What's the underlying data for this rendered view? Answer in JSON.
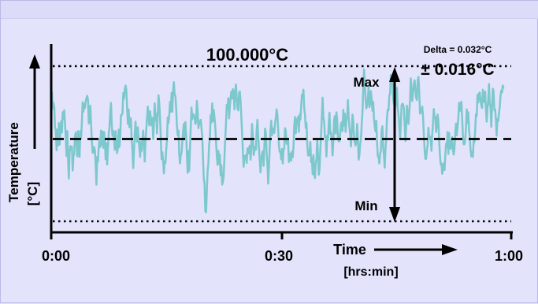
{
  "chart_data": {
    "type": "line",
    "title": "100.000°C",
    "ylabel_line1": "Temperature",
    "ylabel_line2": "[°C]",
    "xlabel_line1": "Time",
    "xlabel_line2": "[hrs:min]",
    "x_ticks": [
      "0:00",
      "0:30",
      "1:00"
    ],
    "xlim": [
      0,
      60
    ],
    "ylim": [
      -0.0175,
      0.0155
    ],
    "setpoint": 0,
    "max_line": 0.016,
    "min_line": -0.016,
    "max_label": "Max",
    "min_label": "Min",
    "delta_label": "Delta = 0.032°C",
    "tolerance_label": "± 0.016°C",
    "series": [
      {
        "color": "#7cc8cc",
        "x_start": 0,
        "x_step": 0.1,
        "values": [
          0.0076,
          0.0099,
          0.0065,
          0.0077,
          0.0068,
          0.0022,
          0.0021,
          -0.0024,
          0.002,
          -0.0014,
          0.0034,
          -0.0012,
          0.0016,
          0.0038,
          0.0014,
          0.0057,
          0.0043,
          0.0061,
          0.0032,
          0.0005,
          -0.0036,
          0.0017,
          -0.0044,
          -0.0084,
          -0.0028,
          -0.0015,
          -0.0018,
          -0.0016,
          -0.0067,
          -0.0036,
          -0.0032,
          0.0006,
          0.0014,
          -0.0005,
          -0.0037,
          0.0017,
          -0.0026,
          -0.0038,
          0.0017,
          0.0001,
          0.0034,
          0.0078,
          0.0058,
          0.0074,
          0.0066,
          0.0081,
          0.0087,
          0.0092,
          0.0084,
          0.0033,
          0.0037,
          0.0071,
          0.0034,
          -0.0002,
          -0.0029,
          -0.0029,
          -0.0017,
          -0.0024,
          -0.0054,
          -0.0097,
          -0.0038,
          -0.0048,
          -0.0017,
          0.0001,
          -0.0017,
          0.0018,
          -0.0012,
          0.0016,
          -0.0019,
          0.0015,
          -0.0005,
          -0.0043,
          -0.0009,
          -0.0054,
          -0.0021,
          0.001,
          0.0026,
          0.0056,
          0.0077,
          0.0029,
          0.0007,
          0.0017,
          0.0,
          -0.0023,
          0.0017,
          -0.0006,
          -0.003,
          -0.0019,
          0.002,
          -0.0017,
          0.0003,
          0.0051,
          0.0051,
          0.0055,
          0.0098,
          0.0086,
          0.0106,
          0.0114,
          0.0104,
          0.0067,
          0.0032,
          0.0063,
          0.0025,
          0.0045,
          0.0042,
          -0.0003,
          -0.0024,
          -0.0062,
          -0.0025,
          0.0011,
          0.0037,
          0.0003,
          -0.0006,
          0.0025,
          0.0,
          -0.0018,
          -0.0038,
          -0.0006,
          -0.0025,
          -0.0001,
          0.0018,
          -0.0011,
          -0.0048,
          -0.0003,
          0.0019,
          0.0046,
          0.0069,
          0.0045,
          0.0029,
          0.0059,
          0.0042,
          0.0029,
          0.0045,
          0.0,
          0.0031,
          0.0076,
          0.004,
          0.0054,
          0.0012,
          0.0056,
          0.0093,
          0.0074,
          0.0043,
          -0.0002,
          -0.0043,
          -0.0028,
          -0.0047,
          -0.0073,
          -0.0048,
          -0.0051,
          -0.0023,
          -0.0002,
          0.0046,
          0.0034,
          0.0052,
          0.0079,
          0.0058,
          0.0098,
          0.0058,
          0.0104,
          0.0121,
          0.0094,
          0.0091,
          0.0065,
          0.0029,
          0.0008,
          0.0018,
          -0.0032,
          -0.0052,
          -0.0034,
          -0.0029,
          -0.0006,
          0.0015,
          0.0032,
          0.0,
          0.0036,
          0.0009,
          -0.0033,
          -0.0072,
          -0.0025,
          -0.0068,
          -0.0021,
          0.0026,
          0.0067,
          0.0042,
          0.0053,
          0.0052,
          0.0046,
          0.0032,
          0.0037,
          0.0081,
          0.006,
          0.0023,
          0.0033,
          0.0036,
          0.0041,
          0.0024,
          0.0006,
          -0.004,
          -0.0084,
          -0.0095,
          -0.0153,
          -0.0156,
          -0.0109,
          -0.0068,
          -0.0052,
          -0.0011,
          0.0002,
          0.0051,
          0.0035,
          0.0076,
          0.0038,
          0.0062,
          0.0046,
          0.0026,
          -0.0006,
          -0.0036,
          -0.0055,
          -0.0025,
          -0.0053,
          -0.0033,
          -0.0077,
          -0.0056,
          -0.0097,
          -0.0091,
          -0.0078,
          -0.0038,
          0.0,
          0.0033,
          0.0073,
          0.0063,
          0.0087,
          0.0044,
          0.0069,
          0.0088,
          0.0101,
          0.0086,
          0.0106,
          0.0099,
          0.0063,
          0.0102,
          0.0116,
          0.0088,
          0.0065,
          0.0061,
          0.0098,
          0.0101,
          0.0082,
          0.0046,
          0.0013,
          -0.0026,
          -0.0059,
          -0.0036,
          -0.0038,
          -0.0034,
          -0.0051,
          -0.002,
          -0.0031,
          -0.0019,
          -0.0014,
          -0.0044,
          -0.0013,
          0.0032,
          0.0004,
          -0.0034,
          -0.0026,
          -0.0017,
          -0.0022,
          0.002,
          0.0041,
          0.0004,
          -0.002,
          -0.0045,
          -0.0071,
          -0.0045,
          -0.0031,
          -0.0026,
          -0.0057,
          -0.0015,
          0.0022,
          0.0012,
          -0.003,
          -0.0053,
          -0.0095,
          -0.0059,
          -0.0019,
          0.0018,
          0.0039,
          0.0008,
          0.0023,
          0.0022,
          0.0013,
          0.0034,
          0.0046,
          0.0063,
          0.0053,
          0.0022,
          -0.0012,
          -0.0027,
          -0.0027,
          -0.0043,
          -0.0021,
          -0.0052,
          -0.0025,
          -0.0019,
          0.0023,
          0.0017,
          -0.0009,
          -0.0011,
          -0.0003,
          -0.0049,
          -0.0033,
          -0.0031,
          -0.0046,
          -0.0027,
          -0.0039,
          -0.0018,
          0.0028,
          0.0047,
          0.0012,
          0.0038,
          0.0043,
          0.0047,
          0.0015,
          0.0052,
          0.0041,
          0.0069,
          0.0094,
          0.0091,
          0.0105,
          0.0066,
          0.0052,
          0.0023,
          0.0034,
          -0.0012,
          -0.0035,
          -0.0035,
          -0.0032,
          -0.0006,
          -0.0049,
          -0.004,
          -0.0075,
          -0.0034,
          -0.0071,
          -0.0083,
          -0.0053,
          -0.0042,
          0.0,
          -0.0033,
          -0.0076,
          -0.0064,
          -0.0023,
          0.0007,
          0.0049,
          0.0088,
          0.0046,
          0.0037,
          0.0004,
          0.0006,
          -0.0037,
          0.0007,
          -0.0002,
          0.0034,
          0.0056,
          0.0011,
          0.0014,
          -0.0004,
          -0.0035,
          -0.0003,
          0.0041,
          0.0049,
          0.0012,
          0.0057,
          0.0041,
          0.0005,
          -0.0005,
          -0.0005,
          0.0013,
          0.0033,
          0.0036,
          0.0017,
          0.0062,
          0.0029,
          0.0054,
          0.0015,
          0.004,
          0.0047,
          0.0083,
          0.0047,
          0.0025,
          0.0008,
          -0.0016,
          0.0015,
          0.0052,
          0.0038,
          0.0001,
          -0.0007,
          -0.0014,
          -0.0006,
          0.0032,
          0.0001,
          -0.0044,
          -0.0034,
          -0.0011,
          0.0,
          0.0031,
          0.0057,
          0.0105,
          0.0148,
          0.0122,
          0.0086,
          0.0065,
          0.0072,
          0.0087,
          0.0111,
          0.0068,
          0.0074,
          0.0102,
          0.0083,
          0.006,
          0.0079,
          0.0044,
          0.0027,
          0.0016,
          0.0039,
          -0.0008,
          -0.0036,
          -0.0039,
          -0.0052,
          -0.0032,
          -0.0025,
          0.0017,
          0.0027,
          -0.0018,
          -0.0035,
          -0.0061,
          -0.0022,
          0.0002,
          0.0047,
          0.0063,
          0.0061,
          0.0093,
          0.0095,
          0.0136,
          0.0131,
          0.0126,
          0.0086,
          0.0075,
          0.0099,
          0.007,
          0.0092,
          0.0109,
          0.0064,
          0.0052,
          0.0026,
          0.0,
          0.0031,
          0.0072,
          0.0075,
          0.0074,
          0.0065,
          0.003,
          -0.0004,
          0.0026,
          0.0071,
          0.0051,
          0.0032,
          0.0056,
          0.0082,
          0.0129,
          0.0106,
          0.0081,
          0.0098,
          0.0117,
          0.0125,
          0.0106,
          0.0088,
          0.0083,
          0.0124,
          0.0132,
          0.0103,
          0.0054,
          0.0057,
          0.0059,
          0.0069,
          0.0047,
          0.0011,
          -0.0022,
          -0.0042,
          -0.0042,
          -0.0023,
          -0.0013,
          0.0024,
          0.0,
          0.0006,
          0.0002,
          -0.0025,
          0.0012,
          0.0032,
          0.0064,
          0.0046,
          0.0047,
          0.0015,
          0.0029,
          0.0052,
          0.0038,
          -0.0003,
          -0.0033,
          -0.0054,
          -0.0052,
          -0.0074,
          -0.0062,
          -0.0052,
          -0.0066,
          -0.0036,
          -0.001,
          -0.0017,
          0.0015,
          -0.0032,
          0.0013,
          -0.0017,
          -0.0021,
          -0.0005,
          0.0004,
          -0.0024,
          -0.0033,
          -0.0019,
          0.0011,
          0.0033,
          0.0008,
          0.0026,
          0.0044,
          0.0077,
          0.006,
          0.0076,
          0.0079,
          0.0045,
          0.0007,
          -0.0011,
          -0.0011,
          -0.0001,
          0.0023,
          0.0063,
          0.0034,
          0.0057,
          0.0017,
          0.0004,
          -0.0024,
          -0.0037,
          -0.0027,
          -0.0038,
          -0.0004,
          -0.0007,
          0.0018,
          0.0053,
          0.0049,
          0.0094,
          0.0078,
          0.0097,
          0.0099,
          0.0082,
          0.0071,
          0.0066,
          0.0105,
          0.0079,
          0.0079,
          0.0101,
          0.0065,
          0.0037,
          0.0064,
          0.0083,
          0.0117,
          0.0074,
          0.007,
          0.0026,
          0.0071,
          0.0107,
          0.0102,
          0.0061,
          0.0063,
          0.0043,
          0.0007,
          0.0042,
          0.0038,
          0.0054,
          0.0067,
          0.0091,
          0.0103,
          0.0099,
          0.0114,
          0.0107
        ]
      }
    ]
  }
}
